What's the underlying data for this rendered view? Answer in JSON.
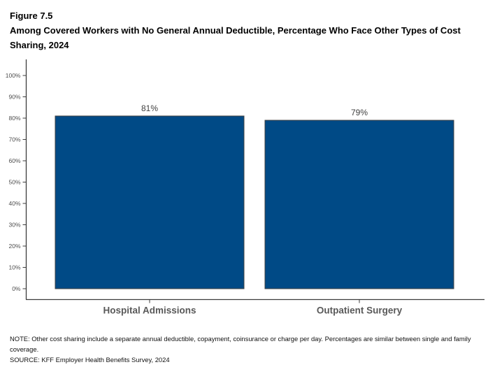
{
  "figure": {
    "label": "Figure 7.5",
    "title": "Among Covered Workers with No General Annual Deductible, Percentage Who Face Other Types of Cost Sharing, 2024"
  },
  "chart_data": {
    "type": "bar",
    "categories": [
      "Hospital Admissions",
      "Outpatient Surgery"
    ],
    "values": [
      81,
      79
    ],
    "value_labels": [
      "81%",
      "79%"
    ],
    "title": "Among Covered Workers with No General Annual Deductible, Percentage Who Face Other Types of Cost Sharing, 2024",
    "xlabel": "",
    "ylabel": "",
    "ylim": [
      0,
      100
    ],
    "y_tick_step": 10,
    "y_tick_labels": [
      "0%",
      "10%",
      "20%",
      "30%",
      "40%",
      "50%",
      "60%",
      "70%",
      "80%",
      "90%",
      "100%"
    ],
    "grid": false,
    "legend_position": "none",
    "colors": {
      "bar_fill": "#004A86",
      "bar_border": "#404040",
      "axis_line": "#3C3C3C",
      "y_tick_label": "#4D4D4D",
      "category_label": "#595959",
      "value_label": "#404040"
    }
  },
  "notes": {
    "note": "NOTE: Other cost sharing include a separate annual deductible, copayment, coinsurance or charge per day. Percentages are similar between single and family coverage.",
    "source": "SOURCE: KFF Employer Health Benefits Survey, 2024"
  }
}
